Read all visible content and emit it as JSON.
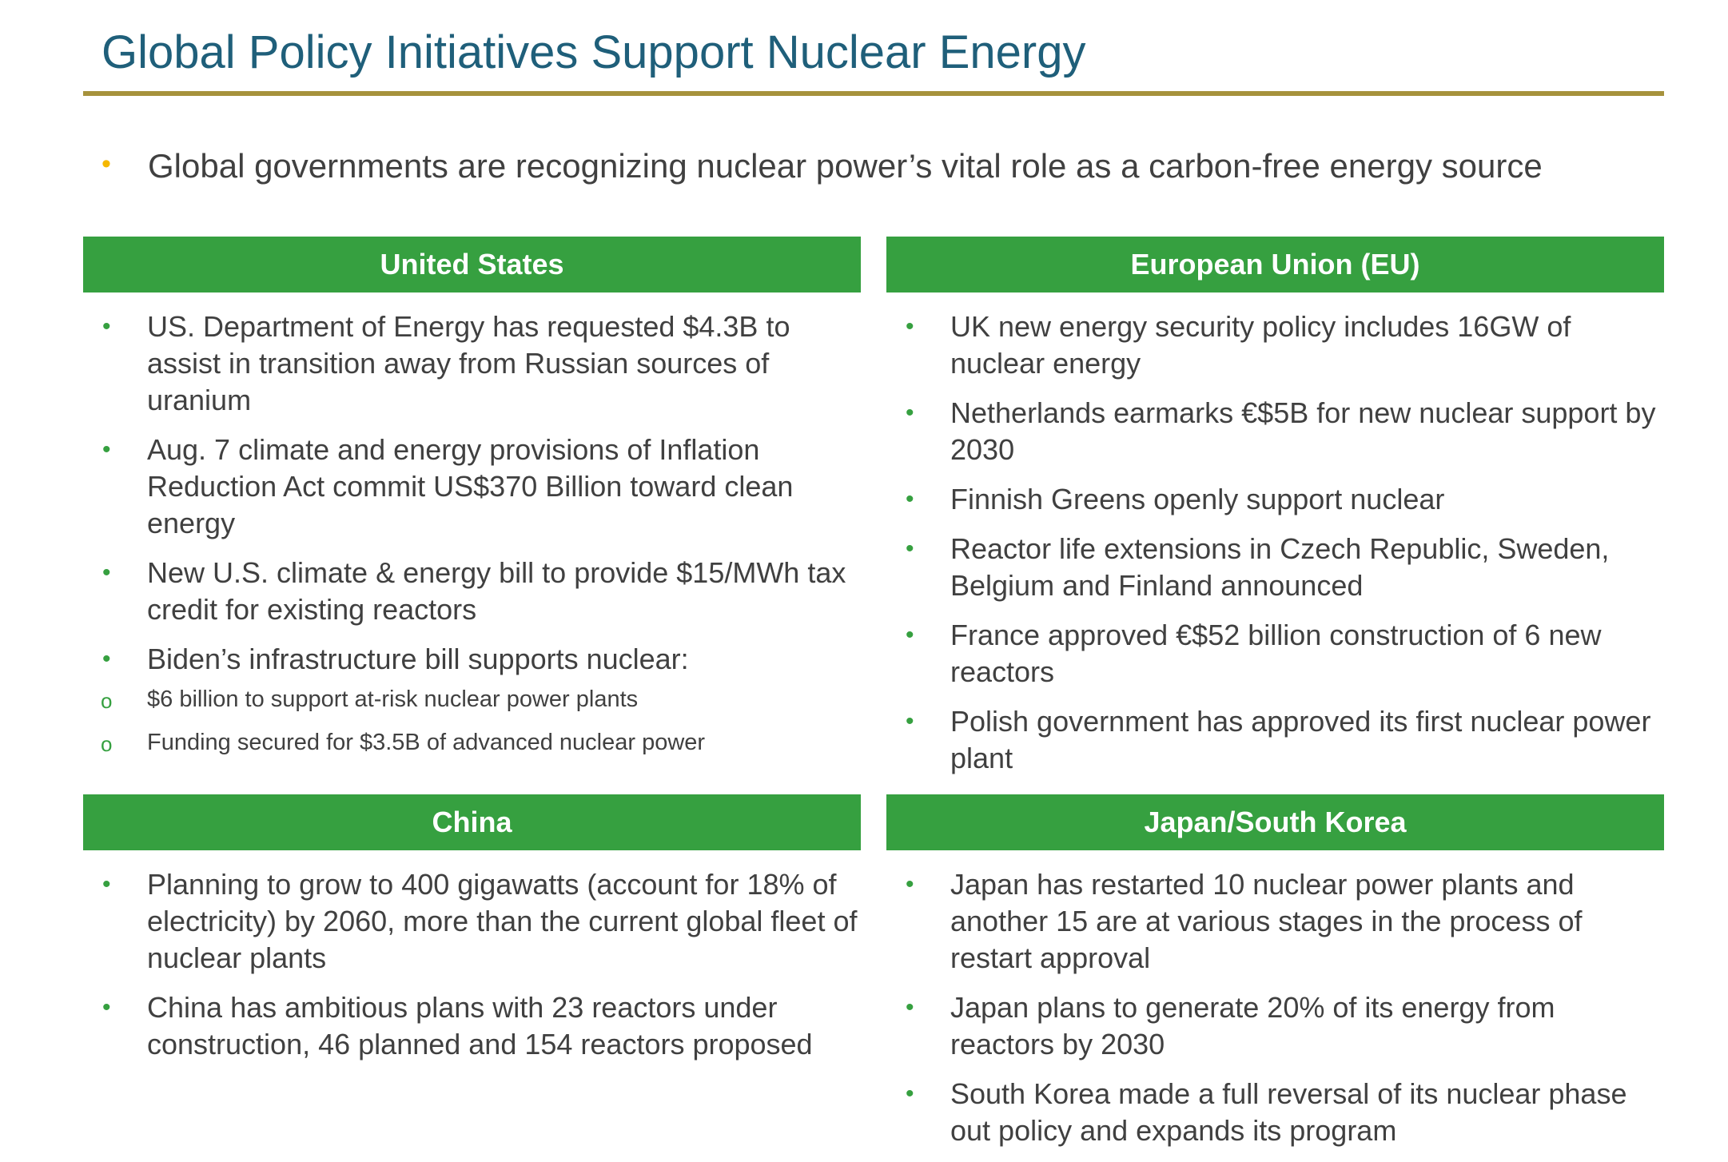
{
  "title": "Global Policy Initiatives Support Nuclear Energy",
  "intro": {
    "bullet": "•",
    "text": "Global governments are recognizing nuclear power’s vital role as a carbon-free energy source"
  },
  "colors": {
    "title": "#1f5f7a",
    "rule": "#a6923c",
    "header_bg": "#36a040",
    "header_text": "#ffffff",
    "intro_bullet": "#f5b800",
    "list_bullet": "#36a040",
    "body_text": "#404040"
  },
  "panels": {
    "us": {
      "header": "United States",
      "items": [
        "US. Department of Energy has requested $4.3B to assist in transition away from Russian sources of uranium",
        "Aug. 7 climate and energy provisions of Inflation Reduction Act commit US$370 Billion toward clean energy",
        "New U.S. climate & energy bill to provide $15/MWh tax credit for existing reactors",
        "Biden’s infrastructure bill supports nuclear:"
      ],
      "subitems": [
        "$6 billion to support at-risk nuclear power plants",
        "Funding secured for $3.5B of advanced nuclear power"
      ]
    },
    "eu": {
      "header": "European Union (EU)",
      "items": [
        "UK new energy security policy includes 16GW of nuclear energy",
        "Netherlands earmarks €$5B for new nuclear support by 2030",
        "Finnish Greens openly support nuclear",
        "Reactor life extensions in Czech Republic, Sweden, Belgium and Finland announced",
        "France approved €$52 billion construction of 6 new reactors",
        "Polish government has approved its first nuclear power plant"
      ]
    },
    "china": {
      "header": "China",
      "items": [
        "Planning to grow to 400 gigawatts (account for 18% of electricity) by 2060, more than the current global fleet of nuclear plants",
        "China has ambitious plans with 23 reactors under construction, 46 planned and 154 reactors proposed"
      ]
    },
    "japan_korea": {
      "header": "Japan/South Korea",
      "items": [
        "Japan has restarted 10 nuclear power plants and another 15 are at various stages in the process of restart approval",
        "Japan plans to generate 20% of its energy from reactors by 2030",
        "South Korea made a full reversal of its nuclear phase out policy and expands its program"
      ]
    }
  },
  "bullet_char": "•",
  "sub_bullet_char": "o"
}
